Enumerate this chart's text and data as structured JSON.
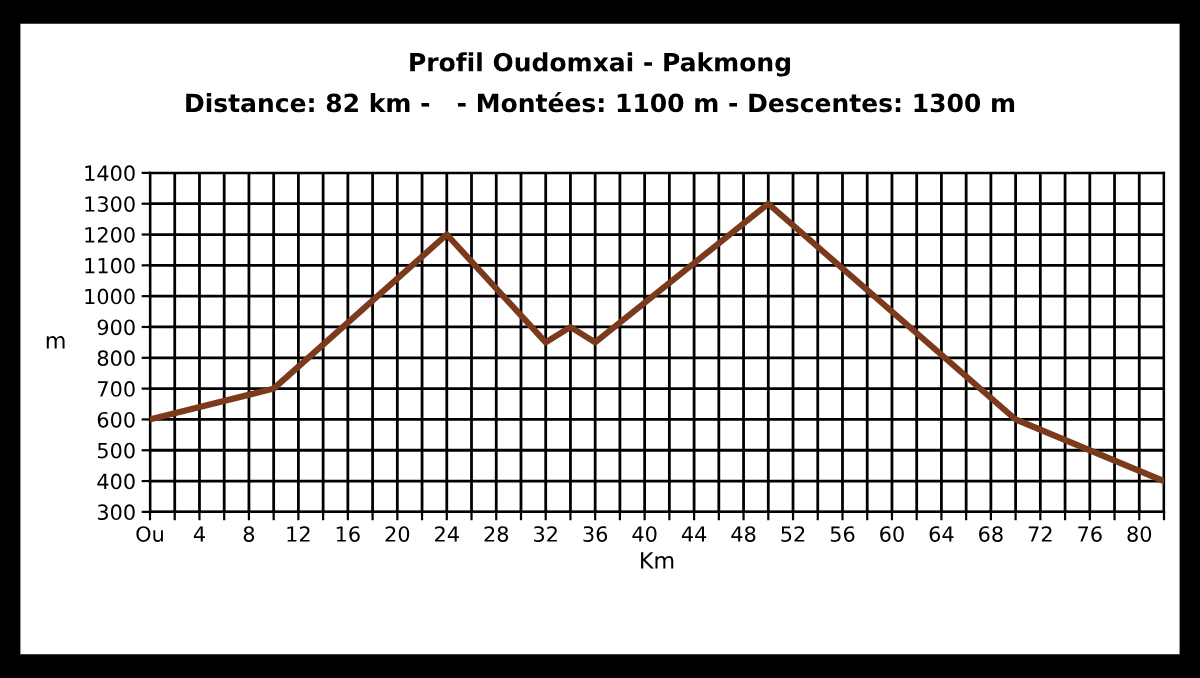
{
  "chart_data": {
    "type": "line",
    "title": "Profil Oudomxai - Pakmong",
    "subtitle": "Distance: 82 km -   - Montées: 1100 m - Descentes: 1300 m",
    "xlabel": "Km",
    "ylabel": "m",
    "x": [
      0,
      10,
      24,
      32,
      34,
      36,
      50,
      70,
      82
    ],
    "series": [
      {
        "color": "#7b3a1c",
        "values": [
          600,
          700,
          1200,
          850,
          900,
          850,
          1300,
          600,
          400
        ]
      }
    ],
    "xlim": [
      0,
      82
    ],
    "xticks": [
      {
        "value": 0,
        "label": "Ou"
      },
      {
        "value": 2,
        "label": null
      },
      4,
      {
        "value": 6,
        "label": null
      },
      8,
      {
        "value": 10,
        "label": null
      },
      12,
      {
        "value": 14,
        "label": null
      },
      16,
      {
        "value": 18,
        "label": null
      },
      20,
      {
        "value": 22,
        "label": null
      },
      24,
      {
        "value": 26,
        "label": null
      },
      28,
      {
        "value": 30,
        "label": null
      },
      32,
      {
        "value": 34,
        "label": null
      },
      36,
      {
        "value": 38,
        "label": null
      },
      40,
      {
        "value": 42,
        "label": null
      },
      44,
      {
        "value": 46,
        "label": null
      },
      48,
      {
        "value": 50,
        "label": null
      },
      52,
      {
        "value": 54,
        "label": null
      },
      56,
      {
        "value": 58,
        "label": null
      },
      60,
      {
        "value": 62,
        "label": null
      },
      64,
      {
        "value": 66,
        "label": null
      },
      68,
      {
        "value": 70,
        "label": null
      },
      72,
      {
        "value": 74,
        "label": null
      },
      76,
      {
        "value": 78,
        "label": null
      },
      80,
      {
        "value": 82,
        "label": null
      }
    ],
    "ylim": [
      300,
      1400
    ],
    "yticks": [
      300,
      400,
      500,
      600,
      700,
      800,
      900,
      1000,
      1100,
      1200,
      1300,
      1400
    ],
    "grid": true,
    "marker": "none",
    "line_style": "solid",
    "legend": false
  }
}
